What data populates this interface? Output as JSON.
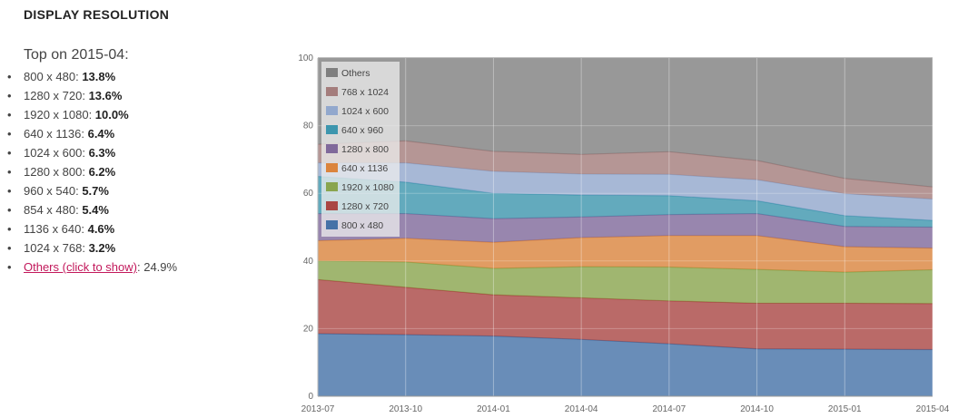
{
  "header": {
    "title": "DISPLAY RESOLUTION"
  },
  "top": {
    "heading": "Top on 2015-04:",
    "items": [
      {
        "label": "800 x 480: ",
        "value": "13.8%"
      },
      {
        "label": "1280 x 720: ",
        "value": "13.6%"
      },
      {
        "label": "1920 x 1080: ",
        "value": "10.0%"
      },
      {
        "label": "640 x 1136: ",
        "value": "6.4%"
      },
      {
        "label": "1024 x 600: ",
        "value": "6.3%"
      },
      {
        "label": "1280 x 800: ",
        "value": "6.2%"
      },
      {
        "label": "960 x 540: ",
        "value": "5.7%"
      },
      {
        "label": "854 x 480: ",
        "value": "5.4%"
      },
      {
        "label": "1136 x 640: ",
        "value": "4.6%"
      },
      {
        "label": "1024 x 768: ",
        "value": "3.2%"
      }
    ],
    "others_link": "Others (click to show)",
    "others_value": ": 24.9%"
  },
  "chart_data": {
    "type": "area",
    "stacked": true,
    "x": [
      "2013-07",
      "2013-10",
      "2014-01",
      "2014-04",
      "2014-07",
      "2014-10",
      "2015-01",
      "2015-04"
    ],
    "ylim": [
      0,
      100
    ],
    "yticks": [
      0,
      20,
      40,
      60,
      80,
      100
    ],
    "grid": true,
    "legend_position": "top-left",
    "series": [
      {
        "name": "800 x 480",
        "color": "#4572A7",
        "values": [
          18.5,
          18.2,
          17.8,
          16.8,
          15.5,
          14.0,
          13.9,
          13.8
        ]
      },
      {
        "name": "1280 x 720",
        "color": "#AA4643",
        "values": [
          16.0,
          14.0,
          12.2,
          12.3,
          12.7,
          13.5,
          13.6,
          13.6
        ]
      },
      {
        "name": "1920 x 1080",
        "color": "#89A54E",
        "values": [
          5.5,
          7.5,
          7.8,
          9.2,
          10.0,
          10.0,
          9.2,
          10.0
        ]
      },
      {
        "name": "640 x 1136",
        "color": "#DB843D",
        "values": [
          6.0,
          7.0,
          7.7,
          8.6,
          9.3,
          10.0,
          7.5,
          6.4
        ]
      },
      {
        "name": "1280 x 800",
        "color": "#80699B",
        "values": [
          8.0,
          7.3,
          7.0,
          6.1,
          6.2,
          6.5,
          6.0,
          6.2
        ]
      },
      {
        "name": "640 x 960",
        "color": "#3D96AE",
        "values": [
          11.0,
          9.3,
          7.5,
          6.5,
          5.6,
          3.8,
          3.2,
          2.0
        ]
      },
      {
        "name": "1024 x 600",
        "color": "#92A8CD",
        "values": [
          4.0,
          5.7,
          6.5,
          6.2,
          6.3,
          6.2,
          6.5,
          6.3
        ]
      },
      {
        "name": "768 x 1024",
        "color": "#A47D7C",
        "values": [
          5.5,
          6.5,
          5.9,
          5.8,
          6.7,
          5.7,
          4.5,
          3.6
        ]
      },
      {
        "name": "Others",
        "color": "#7F7F7F",
        "values": [
          25.5,
          24.5,
          27.6,
          28.5,
          27.7,
          30.3,
          35.6,
          38.1
        ]
      }
    ]
  }
}
